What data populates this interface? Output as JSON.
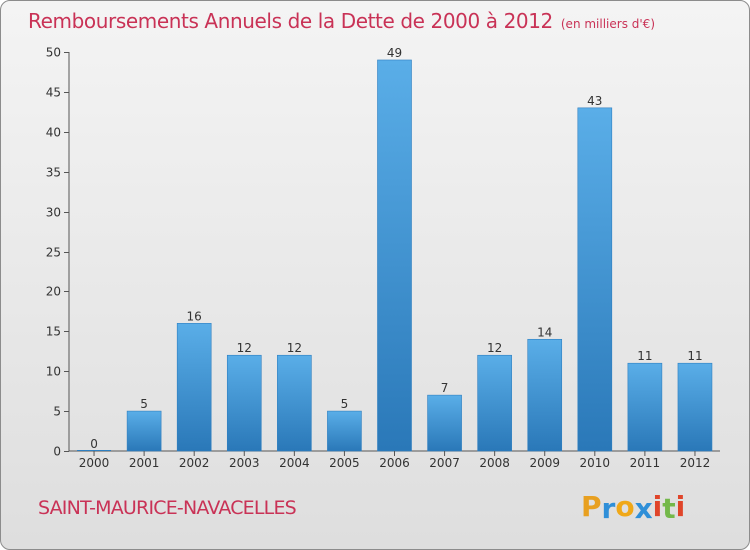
{
  "chart_data": {
    "type": "bar",
    "title": "Remboursements Annuels de la Dette de 2000 à 2012",
    "unit_note": "(en milliers d'€)",
    "categories": [
      "2000",
      "2001",
      "2002",
      "2003",
      "2004",
      "2005",
      "2006",
      "2007",
      "2008",
      "2009",
      "2010",
      "2011",
      "2012"
    ],
    "values": [
      0,
      5,
      16,
      12,
      12,
      5,
      49,
      7,
      12,
      14,
      43,
      11,
      11
    ],
    "ylim": [
      0,
      50
    ],
    "yticks": [
      0,
      5,
      10,
      15,
      20,
      25,
      30,
      35,
      40,
      45,
      50
    ],
    "grid": false,
    "data_labels": true,
    "bar_color_top": "#5aaee8",
    "bar_color_bottom": "#2a78b8"
  },
  "footer": {
    "commune": "SAINT-MAURICE-NAVACELLES",
    "brand_letters": [
      "P",
      "r",
      "o",
      "x",
      "i",
      "t",
      "i"
    ],
    "brand_colors": [
      "#e8a020",
      "#2f8fd8",
      "#f0a818",
      "#2f8fd8",
      "#e0452a",
      "#74b84a",
      "#e0452a"
    ]
  },
  "colors": {
    "title": "#c93256"
  }
}
